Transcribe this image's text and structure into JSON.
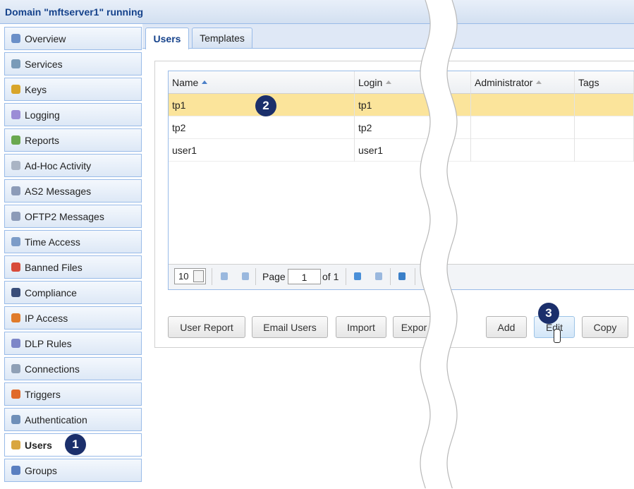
{
  "header": {
    "title": "Domain \"mftserver1\" running"
  },
  "sidebar": {
    "items": [
      "Overview",
      "Services",
      "Keys",
      "Logging",
      "Reports",
      "Ad-Hoc Activity",
      "AS2 Messages",
      "OFTP2 Messages",
      "Time Access",
      "Banned Files",
      "Compliance",
      "IP Access",
      "DLP Rules",
      "Connections",
      "Triggers",
      "Authentication",
      "Users",
      "Groups"
    ],
    "selected": 16
  },
  "tabs": [
    "Users",
    "Templates"
  ],
  "table": {
    "columns": [
      "Name",
      "Login",
      "Administrator",
      "Tags"
    ],
    "rows": [
      [
        "tp1",
        "tp1"
      ],
      [
        "tp2",
        "tp2"
      ],
      [
        "user1",
        "user1"
      ]
    ]
  },
  "pager": {
    "page_size": "10",
    "page_label": "Page",
    "page": "1",
    "of_label": "of 1"
  },
  "buttons": [
    "User Report",
    "Email Users",
    "Import",
    "Expor",
    "Add",
    "Edit",
    "Copy"
  ],
  "callouts": [
    "1",
    "2",
    "3"
  ]
}
